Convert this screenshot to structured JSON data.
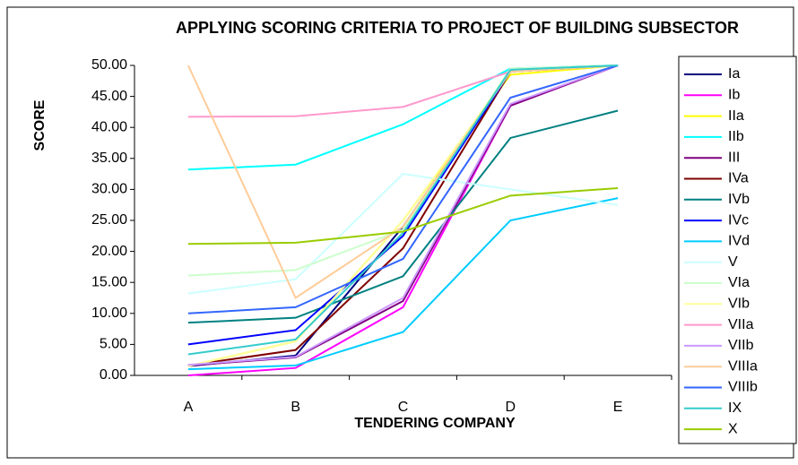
{
  "chart_data": {
    "type": "line",
    "title": "APPLYING SCORING CRITERIA TO PROJECT OF BUILDING SUBSECTOR",
    "xlabel": "TENDERING COMPANY",
    "ylabel": "SCORE",
    "categories": [
      "A",
      "B",
      "C",
      "D",
      "E"
    ],
    "ylim": [
      0,
      50
    ],
    "yticks": [
      {
        "value": 0,
        "label": "0.00"
      },
      {
        "value": 5,
        "label": "5.00"
      },
      {
        "value": 10,
        "label": "10.00"
      },
      {
        "value": 15,
        "label": "15.00"
      },
      {
        "value": 20,
        "label": "20.00"
      },
      {
        "value": 25,
        "label": "25.00"
      },
      {
        "value": 30,
        "label": "30.00"
      },
      {
        "value": 35,
        "label": "35.00"
      },
      {
        "value": 40,
        "label": "40.00"
      },
      {
        "value": 45,
        "label": "45.00"
      },
      {
        "value": 50,
        "label": "50.00"
      }
    ],
    "grid": false,
    "legend": "right",
    "series": [
      {
        "name": "Ia",
        "color": "#000080",
        "values": [
          1.5,
          3.2,
          24,
          49,
          50
        ]
      },
      {
        "name": "Ib",
        "color": "#ff00ff",
        "values": [
          0,
          1.2,
          11,
          43.5,
          50
        ]
      },
      {
        "name": "IIa",
        "color": "#ffff00",
        "values": [
          1.5,
          5.5,
          25,
          48.5,
          50
        ]
      },
      {
        "name": "IIb",
        "color": "#00ffff",
        "values": [
          33.2,
          34,
          40.5,
          49.5,
          50
        ]
      },
      {
        "name": "III",
        "color": "#800080",
        "values": [
          1.6,
          2.9,
          12,
          43.5,
          50
        ]
      },
      {
        "name": "IVa",
        "color": "#800000",
        "values": [
          1.6,
          4.1,
          20.5,
          49,
          50
        ]
      },
      {
        "name": "IVb",
        "color": "#008080",
        "values": [
          8.5,
          9.3,
          16,
          38.3,
          42.7
        ]
      },
      {
        "name": "IVc",
        "color": "#0000ff",
        "values": [
          5,
          7.3,
          22.5,
          49,
          50
        ]
      },
      {
        "name": "IVd",
        "color": "#00ccff",
        "values": [
          1,
          1.6,
          7,
          25,
          28.6
        ]
      },
      {
        "name": "V",
        "color": "#ccffff",
        "values": [
          13.2,
          15.5,
          32.5,
          30,
          27.5
        ]
      },
      {
        "name": "VIa",
        "color": "#ccffcc",
        "values": [
          16.1,
          17,
          23.5,
          49.5,
          50
        ]
      },
      {
        "name": "VIb",
        "color": "#ffff99",
        "values": [
          1.5,
          5.5,
          25,
          49,
          50
        ]
      },
      {
        "name": "VIIa",
        "color": "#ff99cc",
        "values": [
          41.7,
          41.8,
          43.3,
          49,
          50
        ]
      },
      {
        "name": "VIIb",
        "color": "#cc99ff",
        "values": [
          1.7,
          3,
          12.5,
          43.8,
          50
        ]
      },
      {
        "name": "VIIIa",
        "color": "#ffcc99",
        "values": [
          50,
          12.5,
          24,
          49,
          50
        ]
      },
      {
        "name": "VIIIb",
        "color": "#3366ff",
        "values": [
          10,
          11,
          18.8,
          44.8,
          50
        ]
      },
      {
        "name": "IX",
        "color": "#33cccc",
        "values": [
          3.4,
          5.8,
          23,
          49.3,
          50
        ]
      },
      {
        "name": "X",
        "color": "#99cc00",
        "values": [
          21.2,
          21.4,
          23.2,
          29,
          30.2
        ]
      }
    ]
  }
}
